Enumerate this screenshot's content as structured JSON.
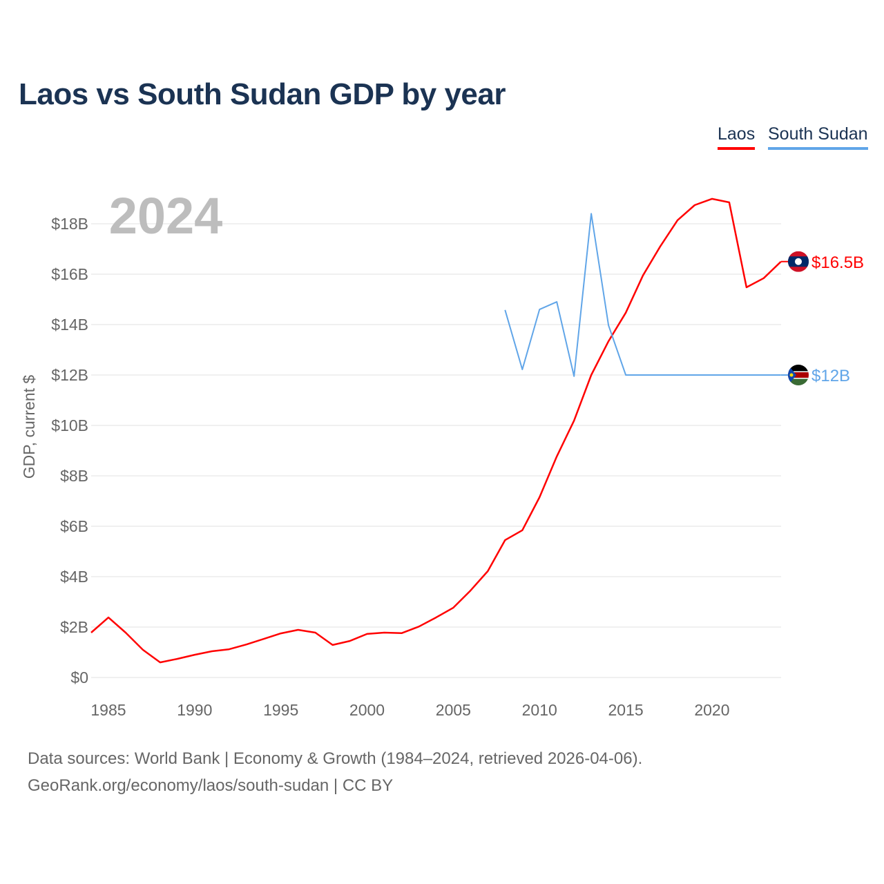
{
  "title": "Laos vs South Sudan GDP by year",
  "legend": [
    {
      "label": "Laos",
      "color": "#ff0000"
    },
    {
      "label": "South Sudan",
      "color": "#60a5e8"
    }
  ],
  "year_watermark": "2024",
  "sources": {
    "line1": "Data sources: World Bank | Economy & Growth (1984–2024, retrieved 2026-04-06).",
    "line2": "GeoRank.org/economy/laos/south-sudan | CC BY"
  },
  "chart_data": {
    "type": "line",
    "title": "Laos vs South Sudan GDP by year",
    "xlabel": "",
    "ylabel": "GDP, current $",
    "xlim": [
      1984,
      2024
    ],
    "ylim": [
      0,
      19
    ],
    "x_ticks": [
      1985,
      1990,
      1995,
      2000,
      2005,
      2010,
      2015,
      2020
    ],
    "y_ticks": [
      0,
      2,
      4,
      6,
      8,
      10,
      12,
      14,
      16,
      18
    ],
    "y_tick_labels": [
      "$0",
      "$2B",
      "$4B",
      "$6B",
      "$8B",
      "$10B",
      "$12B",
      "$14B",
      "$16B",
      "$18B"
    ],
    "grid": true,
    "legend_position": "top-right",
    "series": [
      {
        "name": "Laos",
        "color": "#ff0000",
        "end_label": "$16.5B",
        "flag": "laos-flag",
        "x": [
          1984,
          1985,
          1986,
          1987,
          1988,
          1989,
          1990,
          1991,
          1992,
          1993,
          1994,
          1995,
          1996,
          1997,
          1998,
          1999,
          2000,
          2001,
          2002,
          2003,
          2004,
          2005,
          2006,
          2007,
          2008,
          2009,
          2010,
          2011,
          2012,
          2013,
          2014,
          2015,
          2016,
          2017,
          2018,
          2019,
          2020,
          2021,
          2022,
          2023,
          2024
        ],
        "values": [
          1.78,
          2.38,
          1.78,
          1.1,
          0.6,
          0.74,
          0.9,
          1.04,
          1.12,
          1.31,
          1.53,
          1.75,
          1.89,
          1.78,
          1.29,
          1.45,
          1.73,
          1.78,
          1.76,
          2.02,
          2.38,
          2.77,
          3.45,
          4.22,
          5.45,
          5.84,
          7.15,
          8.77,
          10.19,
          12.0,
          13.34,
          14.47,
          15.95,
          17.1,
          18.14,
          18.74,
          18.99,
          18.85,
          15.48,
          15.84,
          16.5
        ]
      },
      {
        "name": "South Sudan",
        "color": "#60a5e8",
        "end_label": "$12B",
        "flag": "south-sudan-flag",
        "x": [
          2008,
          2009,
          2010,
          2011,
          2012,
          2013,
          2014,
          2015,
          2016,
          2017,
          2018,
          2019,
          2020,
          2021,
          2022,
          2023,
          2024
        ],
        "values": [
          14.58,
          12.22,
          14.6,
          14.9,
          11.95,
          18.4,
          13.97,
          12.0,
          12.0,
          12.0,
          12.0,
          12.0,
          12.0,
          12.0,
          12.0,
          12.0,
          12.0
        ]
      }
    ]
  }
}
